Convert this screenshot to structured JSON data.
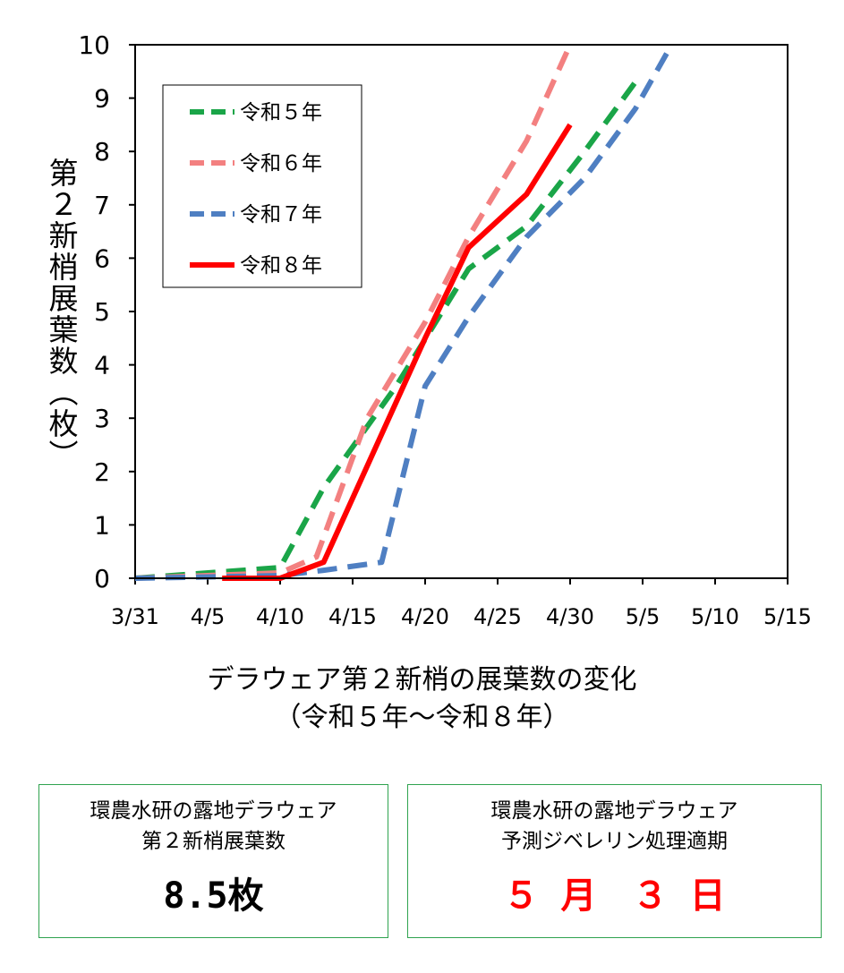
{
  "chart_data": {
    "type": "line",
    "ylabel": "第２新梢展葉数（枚）",
    "title": "デラウェア第２新梢の展葉数の変化",
    "subtitle": "（令和５年〜令和８年）",
    "x_tick_labels": [
      "3/31",
      "4/5",
      "4/10",
      "4/15",
      "4/20",
      "4/25",
      "4/30",
      "5/5",
      "5/10",
      "5/15"
    ],
    "x_tick_days": [
      0,
      5,
      10,
      15,
      20,
      25,
      30,
      35,
      40,
      45
    ],
    "xlim": [
      0,
      45
    ],
    "ylim": [
      0,
      10
    ],
    "y_ticks": [
      0,
      1,
      2,
      3,
      4,
      5,
      6,
      7,
      8,
      9,
      10
    ],
    "grid": false,
    "legend_position": "top-left",
    "series": [
      {
        "name": "令和５年",
        "color": "#1aa548",
        "dashed": true,
        "points": [
          [
            0,
            0
          ],
          [
            10,
            0.2
          ],
          [
            13,
            1.7
          ],
          [
            18,
            3.6
          ],
          [
            23,
            5.8
          ],
          [
            27,
            6.6
          ],
          [
            31,
            8.0
          ],
          [
            34.5,
            9.3
          ]
        ]
      },
      {
        "name": "令和６年",
        "color": "#f38080",
        "dashed": true,
        "points": [
          [
            0,
            0
          ],
          [
            10,
            0.1
          ],
          [
            12.5,
            0.4
          ],
          [
            16,
            3.0
          ],
          [
            20,
            4.8
          ],
          [
            23,
            6.4
          ],
          [
            27,
            8.2
          ],
          [
            30,
            10.0
          ]
        ]
      },
      {
        "name": "令和７年",
        "color": "#4f7fc2",
        "dashed": true,
        "points": [
          [
            0,
            0
          ],
          [
            10,
            0.05
          ],
          [
            13,
            0.15
          ],
          [
            17,
            0.3
          ],
          [
            20,
            3.6
          ],
          [
            23,
            4.9
          ],
          [
            27,
            6.4
          ],
          [
            31,
            7.5
          ],
          [
            34.5,
            8.8
          ],
          [
            37,
            10.0
          ]
        ]
      },
      {
        "name": "令和８年",
        "color": "#ff0000",
        "dashed": false,
        "points": [
          [
            6,
            0
          ],
          [
            10,
            0
          ],
          [
            13,
            0.3
          ],
          [
            20,
            4.5
          ],
          [
            23,
            6.2
          ],
          [
            27,
            7.2
          ],
          [
            30,
            8.5
          ]
        ]
      }
    ]
  },
  "info": {
    "left": {
      "line1": "環農水研の露地デラウェア",
      "line2": "第２新梢展葉数",
      "value": "8.5枚"
    },
    "right": {
      "line1": "環農水研の露地デラウェア",
      "line2": "予測ジベレリン処理適期",
      "value": "５ 月　３ 日"
    }
  }
}
